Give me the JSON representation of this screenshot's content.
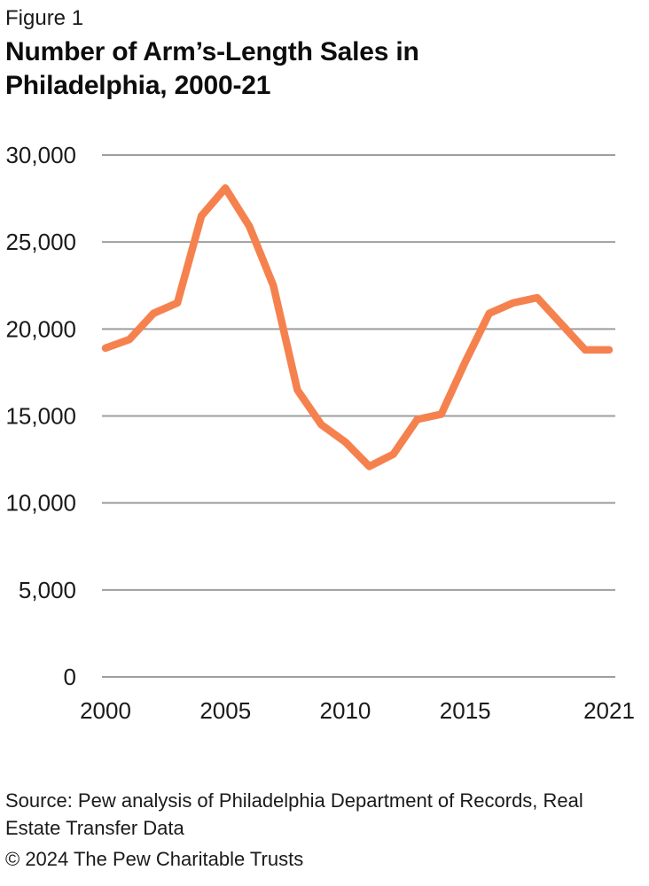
{
  "figure_label": "Figure 1",
  "title": "Number of Arm’s-Length Sales in Philadelphia, 2000-21",
  "source": "Source: Pew analysis of Philadelphia Department of Records, Real Estate Transfer Data",
  "copyright": "© 2024 The Pew Charitable Trusts",
  "colors": {
    "line": "#F5824E",
    "grid": "#9E9E9E",
    "text": "#1A1A1A"
  },
  "chart_data": {
    "type": "line",
    "title": "Number of Arm’s-Length Sales in Philadelphia, 2000-21",
    "x": [
      2000,
      2001,
      2002,
      2003,
      2004,
      2005,
      2006,
      2007,
      2008,
      2009,
      2010,
      2011,
      2012,
      2013,
      2014,
      2015,
      2016,
      2017,
      2018,
      2019,
      2020,
      2021
    ],
    "values": [
      18900,
      19400,
      20900,
      21500,
      26500,
      28100,
      25900,
      22500,
      16500,
      14500,
      13500,
      12100,
      12800,
      14800,
      15100,
      18100,
      20900,
      21500,
      21800,
      20300,
      18800,
      18800
    ],
    "xlabel": "",
    "ylabel": "",
    "ylim": [
      0,
      30000
    ],
    "yticks": [
      0,
      5000,
      10000,
      15000,
      20000,
      25000,
      30000
    ],
    "ytick_labels": [
      "0",
      "5,000",
      "10,000",
      "15,000",
      "20,000",
      "25,000",
      "30,000"
    ],
    "xticks": [
      2000,
      2005,
      2010,
      2015,
      2021
    ],
    "grid": "horizontal",
    "legend": "none",
    "line_color": "#F5824E"
  }
}
